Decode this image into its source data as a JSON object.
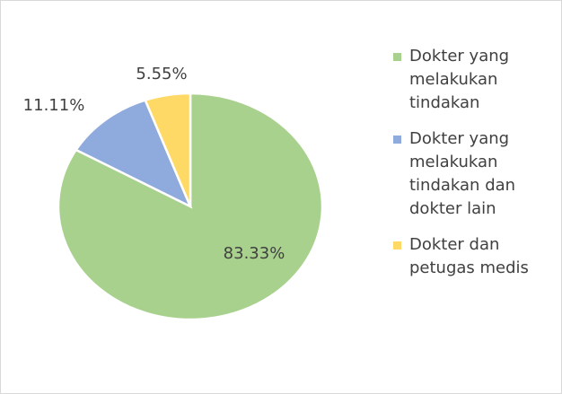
{
  "chart_data": {
    "type": "pie",
    "categories": [
      "Dokter yang melakukan tindakan",
      "Dokter yang melakukan tindakan dan dokter lain",
      "Dokter dan petugas medis"
    ],
    "values": [
      83.33,
      11.11,
      5.55
    ],
    "value_labels": [
      "83.33%",
      "11.11%",
      "5.55%"
    ],
    "colors": [
      "#a9d18e",
      "#8faadc",
      "#ffd966"
    ],
    "legend": "right"
  }
}
